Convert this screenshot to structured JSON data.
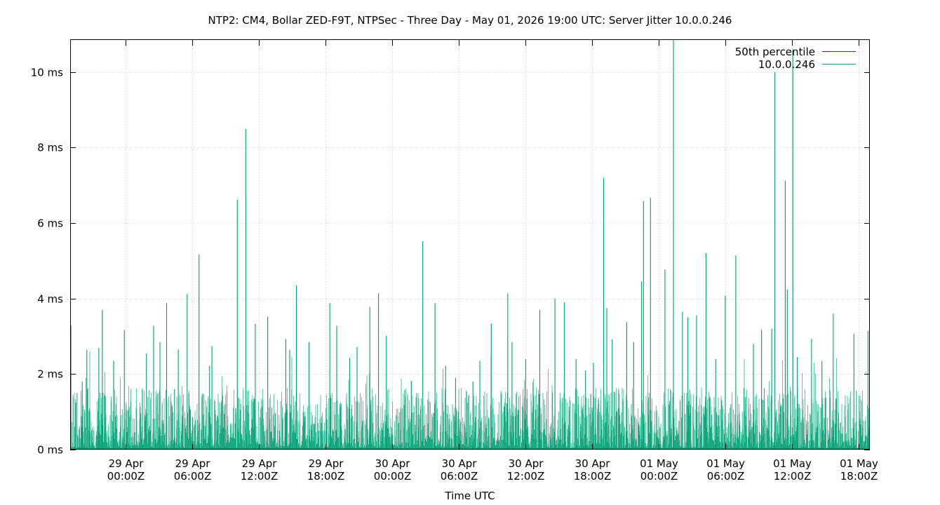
{
  "chart_data": {
    "type": "line",
    "title": "NTP2: CM4, Bollar ZED-F9T, NTPSec - Three Day - May 01, 2026 19:00 UTC: Server Jitter 10.0.0.246",
    "xlabel": "Time UTC",
    "ylabel": "",
    "xlim": [
      "2026-04-28T19:00Z",
      "2026-05-01T19:00Z"
    ],
    "ylim": [
      0,
      10.85
    ],
    "grid": true,
    "legend_position": "top-right",
    "x_ticks": [
      {
        "date": "29 Apr",
        "time": "00:00Z",
        "t": "2026-04-29T00:00Z"
      },
      {
        "date": "29 Apr",
        "time": "06:00Z",
        "t": "2026-04-29T06:00Z"
      },
      {
        "date": "29 Apr",
        "time": "12:00Z",
        "t": "2026-04-29T12:00Z"
      },
      {
        "date": "29 Apr",
        "time": "18:00Z",
        "t": "2026-04-29T18:00Z"
      },
      {
        "date": "30 Apr",
        "time": "00:00Z",
        "t": "2026-04-30T00:00Z"
      },
      {
        "date": "30 Apr",
        "time": "06:00Z",
        "t": "2026-04-30T06:00Z"
      },
      {
        "date": "30 Apr",
        "time": "12:00Z",
        "t": "2026-04-30T12:00Z"
      },
      {
        "date": "30 Apr",
        "time": "18:00Z",
        "t": "2026-04-30T18:00Z"
      },
      {
        "date": "01 May",
        "time": "00:00Z",
        "t": "2026-05-01T00:00Z"
      },
      {
        "date": "01 May",
        "time": "06:00Z",
        "t": "2026-05-01T06:00Z"
      },
      {
        "date": "01 May",
        "time": "12:00Z",
        "t": "2026-05-01T12:00Z"
      },
      {
        "date": "01 May",
        "time": "18:00Z",
        "t": "2026-05-01T18:00Z"
      }
    ],
    "y_ticks": [
      {
        "value": 0,
        "label": "0 ms"
      },
      {
        "value": 2,
        "label": "2 ms"
      },
      {
        "value": 4,
        "label": "4 ms"
      },
      {
        "value": 6,
        "label": "6 ms"
      },
      {
        "value": 8,
        "label": "8 ms"
      },
      {
        "value": 10,
        "label": "10 ms"
      }
    ],
    "series": [
      {
        "name": "50th percentile",
        "color": "#94007b",
        "values": []
      },
      {
        "name": "10.0.0.246",
        "color": "#009e73",
        "points": [
          [
            "2026-04-28T19:04Z",
            3.28
          ],
          [
            "2026-04-28T20:05Z",
            1.8
          ],
          [
            "2026-04-28T20:30Z",
            2.65
          ],
          [
            "2026-04-28T21:35Z",
            2.7
          ],
          [
            "2026-04-28T21:54Z",
            3.7
          ],
          [
            "2026-04-28T22:55Z",
            2.35
          ],
          [
            "2026-04-28T23:53Z",
            3.17
          ],
          [
            "2026-04-29T01:30Z",
            1.6
          ],
          [
            "2026-04-29T01:52Z",
            2.55
          ],
          [
            "2026-04-29T02:31Z",
            3.28
          ],
          [
            "2026-04-29T03:05Z",
            2.85
          ],
          [
            "2026-04-29T03:41Z",
            3.88
          ],
          [
            "2026-04-29T04:24Z",
            1.6
          ],
          [
            "2026-04-29T04:44Z",
            2.65
          ],
          [
            "2026-04-29T05:32Z",
            4.12
          ],
          [
            "2026-04-29T06:36Z",
            5.17
          ],
          [
            "2026-04-29T07:33Z",
            2.22
          ],
          [
            "2026-04-29T07:46Z",
            2.74
          ],
          [
            "2026-04-29T08:52Z",
            0.95
          ],
          [
            "2026-04-29T10:03Z",
            6.62
          ],
          [
            "2026-04-29T10:49Z",
            8.5
          ],
          [
            "2026-04-29T11:40Z",
            3.33
          ],
          [
            "2026-04-29T12:47Z",
            3.52
          ],
          [
            "2026-04-29T14:25Z",
            2.93
          ],
          [
            "2026-04-29T14:46Z",
            2.64
          ],
          [
            "2026-04-29T15:22Z",
            4.35
          ],
          [
            "2026-04-29T16:30Z",
            2.85
          ],
          [
            "2026-04-29T18:23Z",
            3.88
          ],
          [
            "2026-04-29T19:00Z",
            3.28
          ],
          [
            "2026-04-29T20:10Z",
            2.43
          ],
          [
            "2026-04-29T20:50Z",
            2.72
          ],
          [
            "2026-04-29T21:59Z",
            3.78
          ],
          [
            "2026-04-29T22:46Z",
            4.14
          ],
          [
            "2026-04-29T23:28Z",
            3.01
          ],
          [
            "2026-04-30T01:43Z",
            1.82
          ],
          [
            "2026-04-30T02:45Z",
            5.52
          ],
          [
            "2026-04-30T03:51Z",
            3.88
          ],
          [
            "2026-04-30T04:48Z",
            2.22
          ],
          [
            "2026-04-30T05:42Z",
            1.9
          ],
          [
            "2026-04-30T07:16Z",
            1.8
          ],
          [
            "2026-04-30T07:53Z",
            2.35
          ],
          [
            "2026-04-30T08:55Z",
            3.34
          ],
          [
            "2026-04-30T10:24Z",
            4.14
          ],
          [
            "2026-04-30T10:47Z",
            2.85
          ],
          [
            "2026-04-30T12:01Z",
            2.4
          ],
          [
            "2026-04-30T13:17Z",
            3.7
          ],
          [
            "2026-04-30T14:39Z",
            4.0
          ],
          [
            "2026-04-30T15:30Z",
            3.9
          ],
          [
            "2026-04-30T16:33Z",
            2.4
          ],
          [
            "2026-04-30T17:24Z",
            2.1
          ],
          [
            "2026-04-30T18:07Z",
            2.3
          ],
          [
            "2026-04-30T19:02Z",
            7.2
          ],
          [
            "2026-04-30T19:19Z",
            3.75
          ],
          [
            "2026-04-30T19:48Z",
            2.92
          ],
          [
            "2026-04-30T21:06Z",
            3.38
          ],
          [
            "2026-04-30T21:44Z",
            2.85
          ],
          [
            "2026-04-30T22:27Z",
            4.45
          ],
          [
            "2026-04-30T22:37Z",
            6.58
          ],
          [
            "2026-04-30T23:15Z",
            6.67
          ],
          [
            "2026-05-01T00:33Z",
            4.77
          ],
          [
            "2026-05-01T01:19Z",
            10.85
          ],
          [
            "2026-05-01T02:08Z",
            3.65
          ],
          [
            "2026-05-01T02:37Z",
            3.5
          ],
          [
            "2026-05-01T03:24Z",
            3.55
          ],
          [
            "2026-05-01T04:15Z",
            5.2
          ],
          [
            "2026-05-01T05:07Z",
            2.4
          ],
          [
            "2026-05-01T05:59Z",
            4.08
          ],
          [
            "2026-05-01T06:56Z",
            5.14
          ],
          [
            "2026-05-01T08:31Z",
            2.8
          ],
          [
            "2026-05-01T09:15Z",
            3.17
          ],
          [
            "2026-05-01T10:10Z",
            3.2
          ],
          [
            "2026-05-01T10:27Z",
            10.0
          ],
          [
            "2026-05-01T11:23Z",
            7.12
          ],
          [
            "2026-05-01T11:34Z",
            4.24
          ],
          [
            "2026-05-01T12:04Z",
            10.58
          ],
          [
            "2026-05-01T12:28Z",
            2.45
          ],
          [
            "2026-05-01T13:45Z",
            2.93
          ],
          [
            "2026-05-01T14:41Z",
            2.35
          ],
          [
            "2026-05-01T15:42Z",
            3.6
          ],
          [
            "2026-05-01T17:34Z",
            3.07
          ],
          [
            "2026-05-01T18:50Z",
            3.15
          ]
        ]
      }
    ]
  }
}
